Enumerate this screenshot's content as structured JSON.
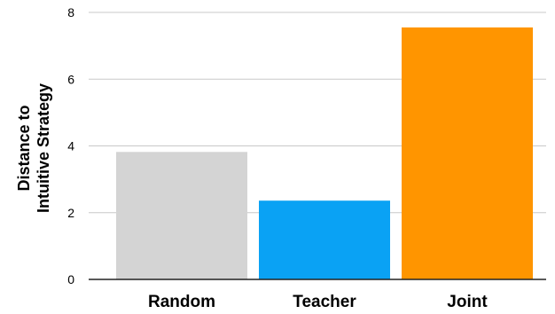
{
  "chart_data": {
    "type": "bar",
    "categories": [
      "Random",
      "Teacher",
      "Joint"
    ],
    "values": [
      3.82,
      2.36,
      7.55
    ],
    "ylabel_lines": [
      "Distance to",
      "Intuitive Strategy"
    ],
    "ylim": [
      0,
      8
    ],
    "yticks": [
      "0",
      "2",
      "4",
      "6",
      "8"
    ],
    "grid": true,
    "legend": "none",
    "colors": [
      "#d4d4d4",
      "#0aa2f4",
      "#ff9500"
    ],
    "grid_color": "#c8c8c8",
    "axis_color": "#222222"
  }
}
